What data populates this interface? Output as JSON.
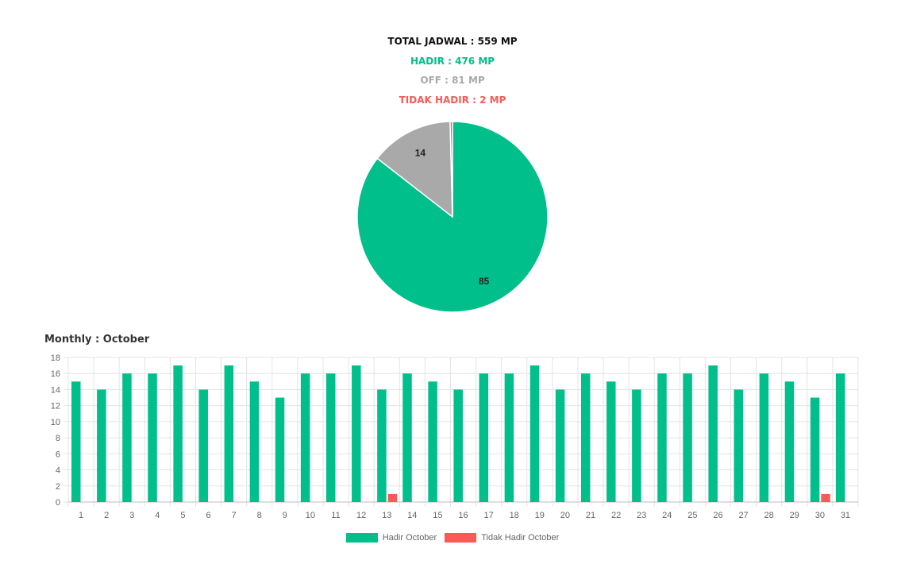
{
  "summary": {
    "total": "TOTAL JADWAL : 559 MP",
    "hadir": "HADIR : 476 MP",
    "off": "OFF : 81 MP",
    "tidak_hadir": "TIDAK HADIR : 2 MP"
  },
  "monthly_title": "Monthly : October",
  "colors": {
    "hadir": "#00bf8a",
    "off": "#a9a9a9",
    "tidak_hadir": "#f95a55"
  },
  "legend": {
    "hadir": "Hadir October",
    "tidak_hadir": "Tidak Hadir October"
  },
  "chart_data": [
    {
      "type": "pie",
      "labels": [
        "HADIR",
        "OFF",
        "TIDAK HADIR"
      ],
      "values": [
        85,
        14,
        0.4
      ],
      "data_labels": [
        "85",
        "14",
        ""
      ],
      "colors": [
        "#00bf8a",
        "#a9a9a9",
        "#f95a55"
      ]
    },
    {
      "type": "bar",
      "categories": [
        "1",
        "2",
        "3",
        "4",
        "5",
        "6",
        "7",
        "8",
        "9",
        "10",
        "11",
        "12",
        "13",
        "14",
        "15",
        "16",
        "17",
        "18",
        "19",
        "20",
        "21",
        "22",
        "23",
        "24",
        "25",
        "26",
        "27",
        "28",
        "29",
        "30",
        "31"
      ],
      "series": [
        {
          "name": "Hadir October",
          "color": "#00bf8a",
          "values": [
            15,
            14,
            16,
            16,
            17,
            14,
            17,
            15,
            13,
            16,
            16,
            17,
            14,
            16,
            15,
            14,
            16,
            16,
            17,
            14,
            16,
            15,
            14,
            16,
            16,
            17,
            14,
            16,
            15,
            13,
            16
          ]
        },
        {
          "name": "Tidak Hadir October",
          "color": "#f95a55",
          "values": [
            0,
            0,
            0,
            0,
            0,
            0,
            0,
            0,
            0,
            0,
            0,
            0,
            1,
            0,
            0,
            0,
            0,
            0,
            0,
            0,
            0,
            0,
            0,
            0,
            0,
            0,
            0,
            0,
            0,
            1,
            0
          ]
        }
      ],
      "yticks": [
        0,
        2,
        4,
        6,
        8,
        10,
        12,
        14,
        16,
        18
      ],
      "ylim": [
        0,
        18
      ],
      "grid": true,
      "legend_position": "bottom"
    }
  ]
}
